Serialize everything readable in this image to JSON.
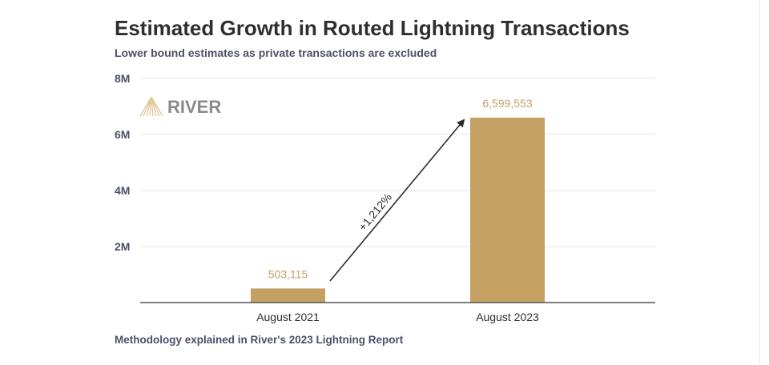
{
  "chart_data": {
    "type": "bar",
    "title": "Estimated Growth in Routed Lightning Transactions",
    "subtitle": "Lower bound estimates as private transactions are excluded",
    "categories": [
      "August 2021",
      "August 2023"
    ],
    "values": [
      503115,
      6599553
    ],
    "data_labels": [
      "503,115",
      "6,599,553"
    ],
    "ylim": [
      0,
      8000000
    ],
    "yticks": [
      2000000,
      4000000,
      6000000,
      8000000
    ],
    "ytick_labels": [
      "2M",
      "4M",
      "6M",
      "8M"
    ],
    "grid": true,
    "annotation": "+1,212%",
    "footnote": "Methodology explained in River's 2023 Lightning Report",
    "logo_text": "RIVER",
    "colors": {
      "bar": "#c4a063",
      "label": "#c4a063",
      "text": "#2e2e33",
      "axis": "#4b5068",
      "grid": "#e3e3e3",
      "logo": "#8a8a8a"
    }
  }
}
